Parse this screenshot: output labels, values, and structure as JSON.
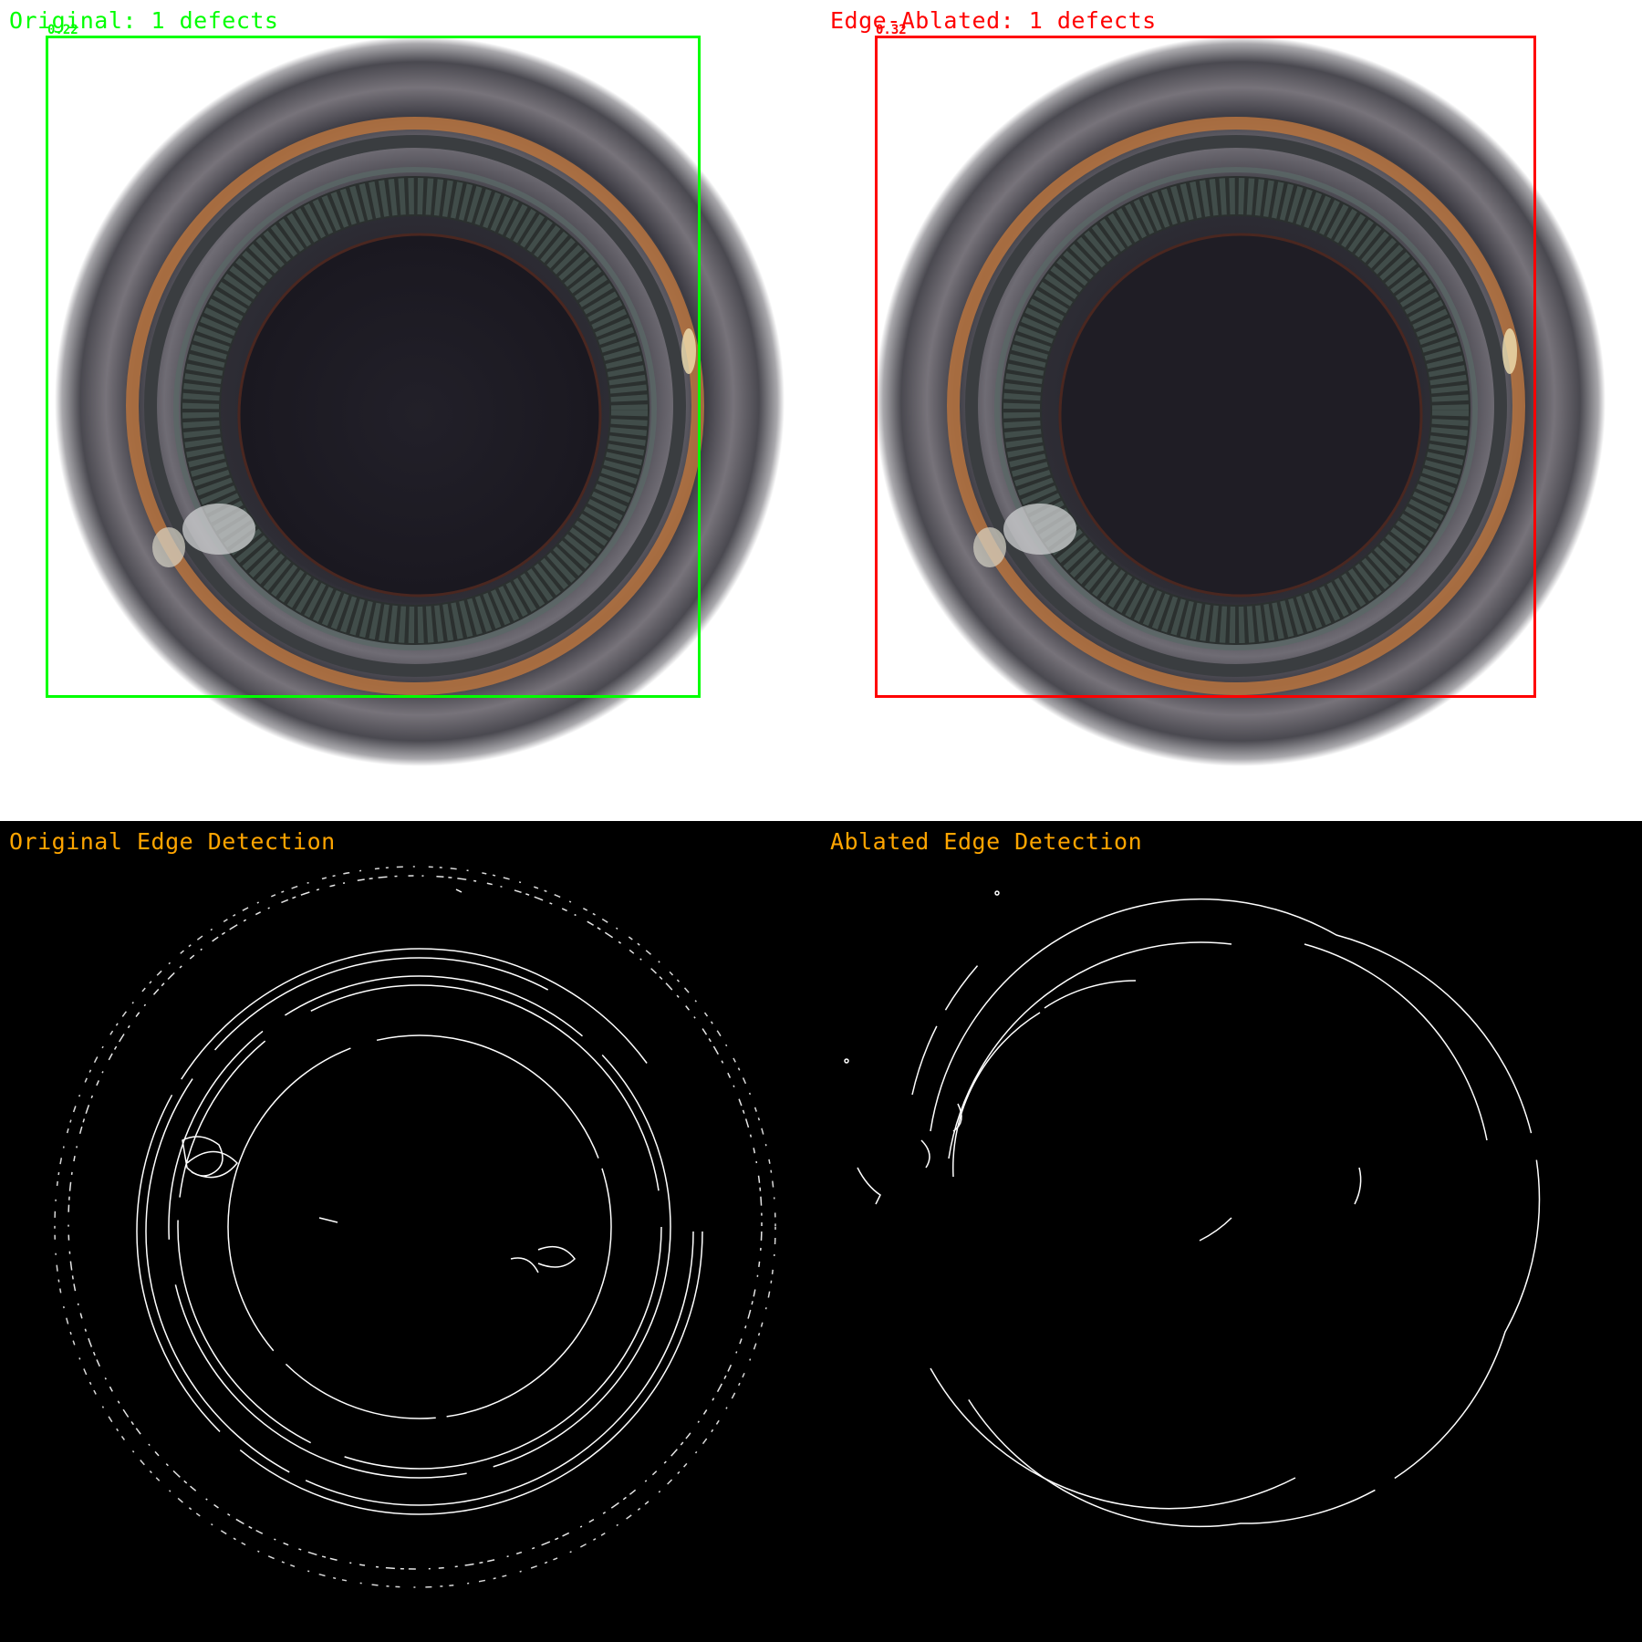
{
  "panels": {
    "original": {
      "title": "Original: 1 defects",
      "score": "0.22",
      "color": "#00ff00"
    },
    "ablated": {
      "title": "Edge-Ablated: 1 defects",
      "score": "0.32",
      "color": "#ff0000"
    },
    "edge_original": {
      "title": "Original Edge Detection",
      "color": "#ffa500"
    },
    "edge_ablated": {
      "title": "Ablated Edge Detection",
      "color": "#ffa500"
    }
  }
}
